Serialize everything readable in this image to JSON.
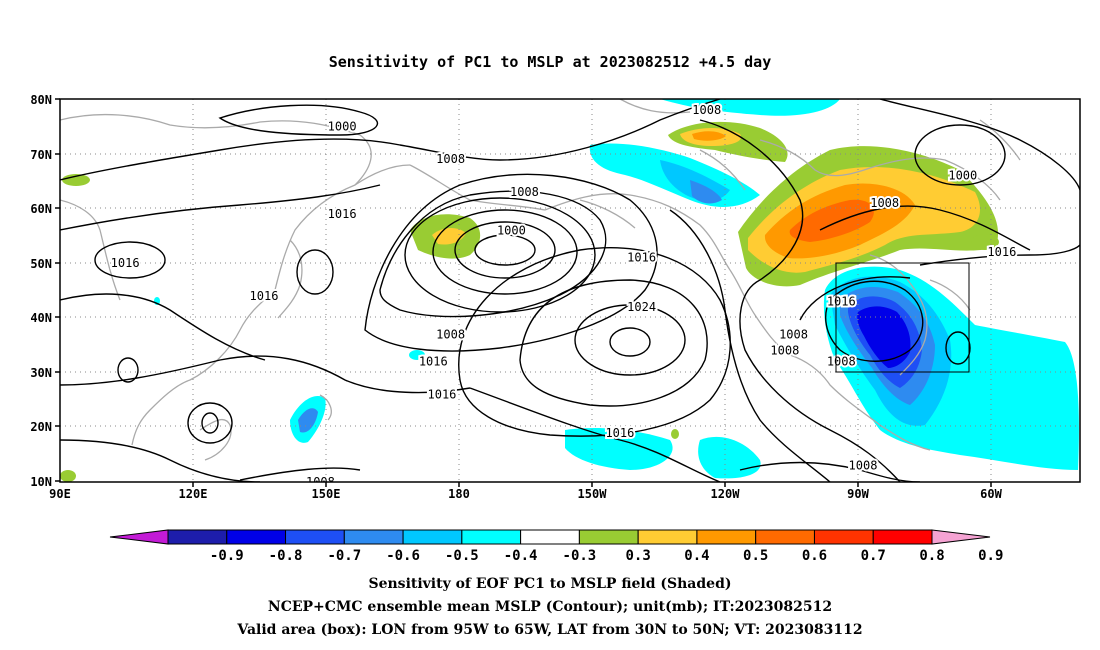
{
  "title": "Sensitivity of PC1 to MSLP at 2023082512 +4.5 day",
  "map": {
    "lat_ticks": [
      "80N",
      "70N",
      "60N",
      "50N",
      "40N",
      "30N",
      "20N",
      "10N"
    ],
    "lon_ticks": [
      "90E",
      "120E",
      "150E",
      "180",
      "150W",
      "120W",
      "90W",
      "60W"
    ],
    "lon_range": [
      "90E",
      "35W"
    ],
    "lat_range": [
      "10N",
      "80N"
    ],
    "grid": "dotted",
    "valid_box": {
      "lon": [
        "95W",
        "65W"
      ],
      "lat": [
        "30N",
        "50N"
      ]
    },
    "contour_labels": [
      {
        "text": "1000",
        "lon": 155,
        "lat": 75
      },
      {
        "text": "1008",
        "lon": 180,
        "lat": 69
      },
      {
        "text": "1008",
        "lon": 197,
        "lat": 63
      },
      {
        "text": "1000",
        "lon": 194,
        "lat": 56
      },
      {
        "text": "1016",
        "lon": 155,
        "lat": 59
      },
      {
        "text": "1016",
        "lon": 105,
        "lat": 50
      },
      {
        "text": "1016",
        "lon": 137,
        "lat": 44
      },
      {
        "text": "1008",
        "lon": 239,
        "lat": 78
      },
      {
        "text": "1016",
        "lon": 224,
        "lat": 51
      },
      {
        "text": "1024",
        "lon": 224,
        "lat": 42
      },
      {
        "text": "1008",
        "lon": 180,
        "lat": 37
      },
      {
        "text": "1016",
        "lon": 176,
        "lat": 32
      },
      {
        "text": "1016",
        "lon": 178,
        "lat": 26
      },
      {
        "text": "1016",
        "lon": 219,
        "lat": 19
      },
      {
        "text": "1008",
        "lon": 150,
        "lat": 10
      },
      {
        "text": "1008",
        "lon": 259,
        "lat": 37
      },
      {
        "text": "1008",
        "lon": 257,
        "lat": 34
      },
      {
        "text": "1008",
        "lon": 275,
        "lat": 13
      },
      {
        "text": "1008",
        "lon": 280,
        "lat": 61
      },
      {
        "text": "1000",
        "lon": 298,
        "lat": 66
      },
      {
        "text": "1016",
        "lon": 270,
        "lat": 43
      },
      {
        "text": "1008",
        "lon": 270,
        "lat": 32
      },
      {
        "text": "1016",
        "lon": 307,
        "lat": 52
      }
    ]
  },
  "colorbar": {
    "labels": [
      "-0.9",
      "-0.8",
      "-0.7",
      "-0.6",
      "-0.5",
      "-0.4",
      "-0.3",
      "0.3",
      "0.4",
      "0.5",
      "0.6",
      "0.7",
      "0.8",
      "0.9"
    ],
    "colors": [
      "#c31bd6",
      "#1d1dab",
      "#0000e8",
      "#1e4ff5",
      "#2e8bf0",
      "#00c8ff",
      "#00ffff",
      "#ffffff",
      "#99cc33",
      "#ffcc33",
      "#ff9900",
      "#ff6a00",
      "#ff3300",
      "#ff0000",
      "#f5a3d3"
    ]
  },
  "footer": {
    "line1": "Sensitivity of EOF PC1 to MSLP field (Shaded)",
    "line2": "NCEP+CMC ensemble mean MSLP (Contour); unit(mb); IT:2023082512",
    "line3": "Valid area (box): LON from 95W to 65W, LAT from 30N to 50N; VT: 2023083112"
  }
}
